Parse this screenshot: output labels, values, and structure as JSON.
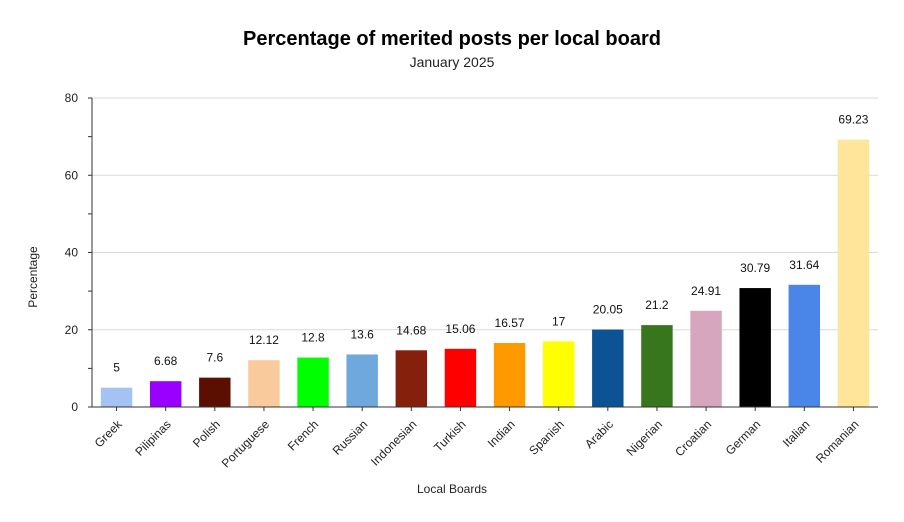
{
  "chart_data": {
    "type": "bar",
    "title": "Percentage of merited posts per local board",
    "subtitle": "January 2025",
    "xlabel": "Local Boards",
    "ylabel": "Percentage",
    "ylim": [
      0,
      80
    ],
    "yticks": [
      0,
      20,
      40,
      60,
      80
    ],
    "grid": true,
    "legend": "none",
    "categories": [
      "Greek",
      "Pilipinas",
      "Polish",
      "Portuguese",
      "French",
      "Russian",
      "Indonesian",
      "Turkish",
      "Indian",
      "Spanish",
      "Arabic",
      "Nigerian",
      "Croatian",
      "German",
      "Italian",
      "Romanian"
    ],
    "values": [
      5,
      6.68,
      7.6,
      12.12,
      12.8,
      13.6,
      14.68,
      15.06,
      16.57,
      17,
      20.05,
      21.2,
      24.91,
      30.79,
      31.64,
      69.23
    ],
    "value_labels": [
      "5",
      "6.68",
      "7.6",
      "12.12",
      "12.8",
      "13.6",
      "14.68",
      "15.06",
      "16.57",
      "17",
      "20.05",
      "21.2",
      "24.91",
      "30.79",
      "31.64",
      "69.23"
    ],
    "colors": [
      "#a4c2f4",
      "#9900ff",
      "#5b0f00",
      "#f9cb9c",
      "#00ff00",
      "#6fa8dc",
      "#85200c",
      "#ff0000",
      "#ff9900",
      "#ffff00",
      "#0b5394",
      "#38761d",
      "#d5a6bd",
      "#000000",
      "#4a86e8",
      "#ffe599"
    ]
  }
}
